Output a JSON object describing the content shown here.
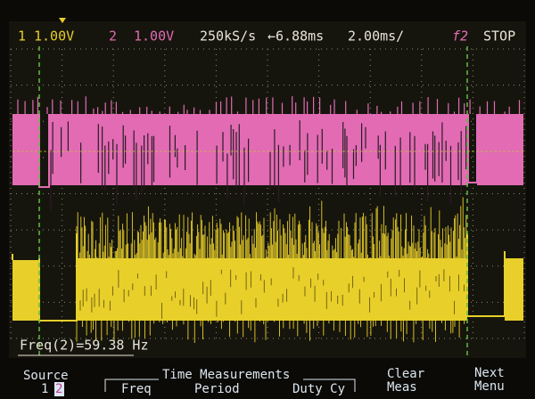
{
  "status_bar": {
    "ch1_label": "1",
    "ch1_scale": "1.00V",
    "ch2_label": "2",
    "ch2_scale": "1.00V",
    "sample_rate": "250kS/s",
    "delay": "←6.88ms",
    "timebase": "2.00ms/",
    "trigger": "f2",
    "run_state": "STOP"
  },
  "measurement": "Freq(2)=59.38 Hz",
  "softkeys": {
    "source": {
      "label": "Source",
      "options": [
        "1",
        "2"
      ]
    },
    "time_measurements": {
      "label": "Time Measurements",
      "items": [
        "Freq",
        "Period",
        "Duty Cy"
      ]
    },
    "clear_meas": [
      "Clear",
      "Meas"
    ],
    "next_menu": [
      "Next",
      "Menu"
    ]
  }
}
